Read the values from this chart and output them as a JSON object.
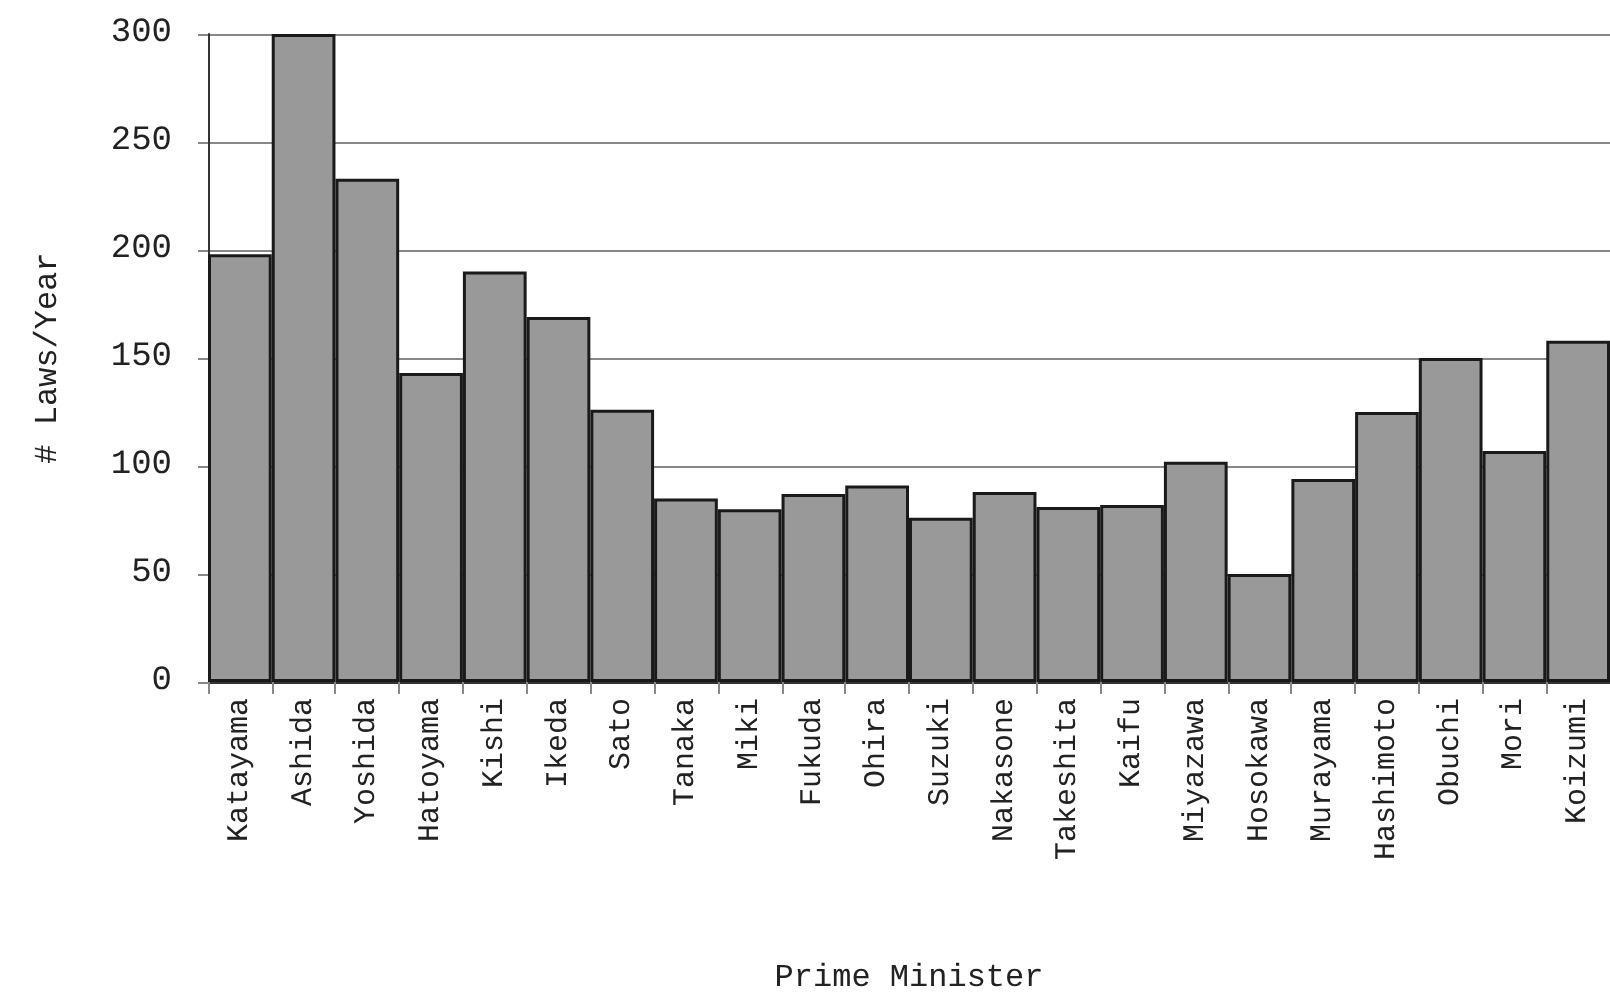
{
  "chart_data": {
    "type": "bar",
    "xlabel": "Prime Minister",
    "ylabel": "# Laws/Year",
    "categories": [
      "Katayama",
      "Ashida",
      "Yoshida",
      "Hatoyama",
      "Kishi",
      "Ikeda",
      "Sato",
      "Tanaka",
      "Miki",
      "Fukuda",
      "Ohira",
      "Suzuki",
      "Nakasone",
      "Takeshita",
      "Kaifu",
      "Miyazawa",
      "Hosokawa",
      "Murayama",
      "Hashimoto",
      "Obuchi",
      "Mori",
      "Koizumi"
    ],
    "values": [
      198,
      300,
      233,
      143,
      190,
      169,
      126,
      85,
      80,
      87,
      91,
      76,
      88,
      81,
      82,
      102,
      50,
      94,
      125,
      150,
      107,
      158
    ],
    "color": "#999999",
    "ylim": [
      0,
      300
    ],
    "yticks": [
      0,
      50,
      100,
      150,
      200,
      250,
      300
    ],
    "grid": "y"
  }
}
